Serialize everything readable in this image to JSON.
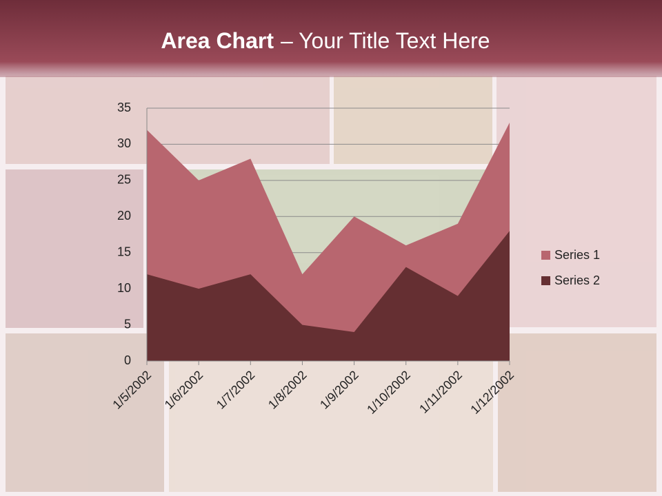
{
  "chart_data": {
    "type": "area",
    "title": [
      "Area Chart",
      "– Your Title Text Here"
    ],
    "categories": [
      "1/5/2002",
      "1/6/2002",
      "1/7/2002",
      "1/8/2002",
      "1/9/2002",
      "1/10/2002",
      "1/11/2002",
      "1/12/2002"
    ],
    "series": [
      {
        "name": "Series 1",
        "color": "#b8666f",
        "values": [
          32,
          25,
          28,
          12,
          20,
          16,
          19,
          33
        ]
      },
      {
        "name": "Series 2",
        "color": "#652f32",
        "values": [
          12,
          10,
          12,
          5,
          4,
          13,
          9,
          18
        ]
      }
    ],
    "ylim": [
      0,
      35
    ],
    "yticks": [
      0,
      5,
      10,
      15,
      20,
      25,
      30,
      35
    ],
    "grid": true,
    "legend": "right"
  }
}
